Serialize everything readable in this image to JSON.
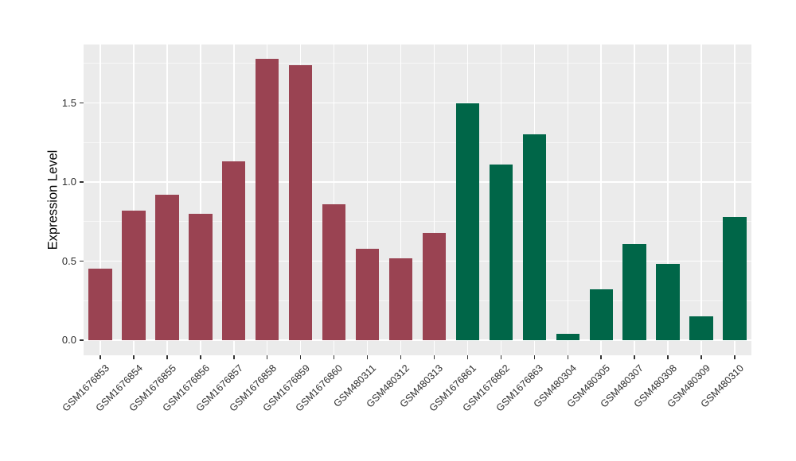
{
  "chart_data": {
    "type": "bar",
    "title": "",
    "xlabel": "",
    "ylabel": "Expression Level",
    "categories": [
      "GSM1676853",
      "GSM1676854",
      "GSM1676855",
      "GSM1676856",
      "GSM1676857",
      "GSM1676858",
      "GSM1676859",
      "GSM1676860",
      "GSM480311",
      "GSM480312",
      "GSM480313",
      "GSM1676861",
      "GSM1676862",
      "GSM1676863",
      "GSM480304",
      "GSM480305",
      "GSM480307",
      "GSM480308",
      "GSM480309",
      "GSM480310"
    ],
    "values": [
      0.45,
      0.82,
      0.92,
      0.8,
      1.13,
      1.78,
      1.74,
      0.86,
      0.58,
      0.52,
      0.68,
      1.5,
      1.11,
      1.3,
      0.04,
      0.32,
      0.61,
      0.48,
      0.15,
      0.78
    ],
    "colors": [
      "#9A4352",
      "#9A4352",
      "#9A4352",
      "#9A4352",
      "#9A4352",
      "#9A4352",
      "#9A4352",
      "#9A4352",
      "#9A4352",
      "#9A4352",
      "#9A4352",
      "#006648",
      "#006648",
      "#006648",
      "#006648",
      "#006648",
      "#006648",
      "#006648",
      "#006648",
      "#006648"
    ],
    "y_ticks": [
      {
        "label": "0.0",
        "value": 0.0
      },
      {
        "label": "0.5",
        "value": 0.5
      },
      {
        "label": "1.0",
        "value": 1.0
      },
      {
        "label": "1.5",
        "value": 1.5
      }
    ],
    "y_minor_ticks": [
      0.25,
      0.75,
      1.25,
      1.75
    ],
    "ylim": [
      -0.1,
      1.87
    ],
    "panel_bg": "#EBEBEB",
    "grid_color": "#FFFFFF",
    "legend": "none",
    "bar_relative_width": 0.7
  }
}
